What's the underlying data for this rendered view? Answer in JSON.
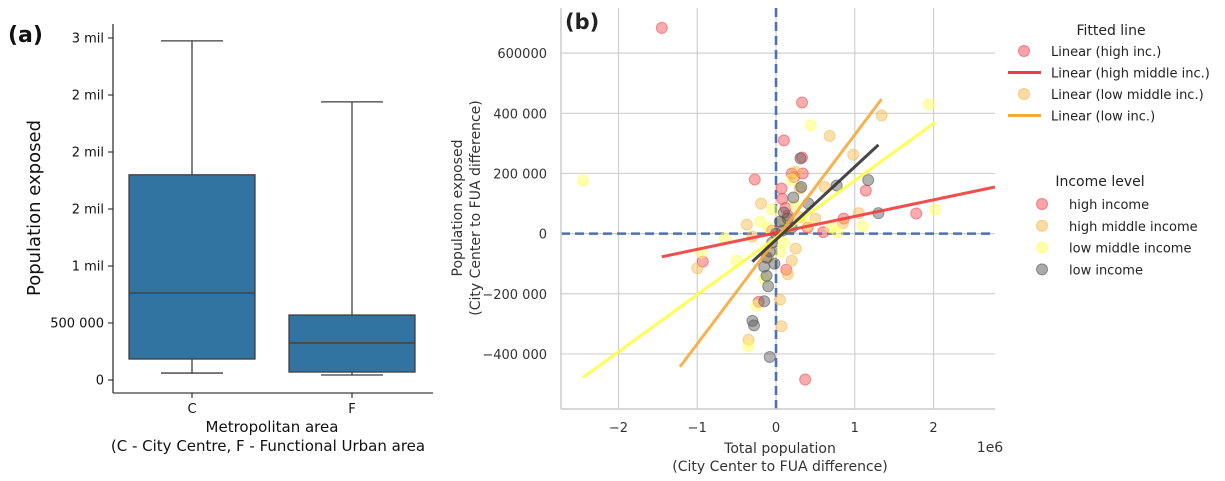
{
  "chart_data": [
    {
      "panel_label": "(a)",
      "type": "box",
      "title": "",
      "xlabel": "Metropolitan area",
      "xlabel_line2": "(C - City Centre, F - Functional Urban area",
      "ylabel": "Population exposed",
      "categories": [
        "C",
        "F"
      ],
      "ylim": [
        -100000,
        3220000
      ],
      "yticks": [
        0,
        500000,
        1000000,
        1500000,
        2000000,
        2500000,
        3000000
      ],
      "ytick_labels": [
        "0",
        "500 000",
        "1 mil",
        "2 mil",
        "2 mil",
        "2 mil",
        "3 mil"
      ],
      "box_color": "#3274a1",
      "boxes": [
        {
          "category": "C",
          "whisker_low": 61000,
          "q1": 184000,
          "median": 763000,
          "q3": 1800000,
          "whisker_high": 2975000
        },
        {
          "category": "F",
          "whisker_low": 44000,
          "q1": 70000,
          "median": 325000,
          "q3": 570000,
          "whisker_high": 2440000
        }
      ]
    },
    {
      "panel_label": "(b)",
      "type": "scatter",
      "title": "",
      "xlabel": "Total population",
      "xlabel_line2": "(City Center to FUA difference)",
      "ylabel": "Population exposed",
      "ylabel_line2": "(City Center to FUA difference)",
      "x_offset_label": "1e6",
      "xlim": [
        -2.73,
        2.78
      ],
      "ylim": [
        -583000,
        750000
      ],
      "xticks": [
        -2,
        -1,
        0,
        1,
        2
      ],
      "xtick_labels": [
        "−2",
        "−1",
        "0",
        "1",
        "2"
      ],
      "yticks": [
        -400000,
        -200000,
        0,
        200000,
        400000,
        600000
      ],
      "ytick_labels": [
        "−400 000",
        "−200 000",
        "0",
        "200 000",
        "400 000",
        "600000"
      ],
      "grid": true,
      "reference_lines": {
        "x": 0,
        "y": 0,
        "color": "#4c72b0",
        "style": "dashed"
      },
      "series": [
        {
          "name": "high income",
          "color": "#f0474f",
          "points": [
            [
              -1.45,
              684000
            ],
            [
              0.33,
              436000
            ],
            [
              0.1,
              310000
            ],
            [
              0.33,
              253000
            ],
            [
              0.34,
              200000
            ],
            [
              -0.27,
              180000
            ],
            [
              0.07,
              150000
            ],
            [
              0.23,
              188000
            ],
            [
              0.2,
              200000
            ],
            [
              1.14,
              143000
            ],
            [
              1.78,
              67000
            ],
            [
              0.86,
              50000
            ],
            [
              0.08,
              115000
            ],
            [
              0.12,
              85000
            ],
            [
              -0.93,
              -93000
            ],
            [
              0.6,
              5000
            ],
            [
              0.37,
              -485000
            ],
            [
              0.13,
              -120000
            ],
            [
              -0.22,
              -227000
            ],
            [
              0.4,
              20000
            ],
            [
              0.15,
              60000
            ],
            [
              -0.05,
              10000
            ]
          ]
        },
        {
          "name": "high middle income",
          "color": "#f7b84a",
          "points": [
            [
              0.68,
              325000
            ],
            [
              1.34,
              393000
            ],
            [
              0.25,
              205000
            ],
            [
              0.98,
              262000
            ],
            [
              0.62,
              155000
            ],
            [
              0.3,
              150000
            ],
            [
              -0.19,
              100000
            ],
            [
              0.85,
              35000
            ],
            [
              1.05,
              68000
            ],
            [
              -0.37,
              30000
            ],
            [
              0.07,
              -308000
            ],
            [
              -1.0,
              -115000
            ],
            [
              -0.35,
              -353000
            ],
            [
              0.2,
              -90000
            ],
            [
              0.15,
              -135000
            ],
            [
              0.3,
              55000
            ],
            [
              0.5,
              50000
            ],
            [
              -0.1,
              -80000
            ],
            [
              0.25,
              -50000
            ],
            [
              -0.3,
              -10000
            ],
            [
              0.1,
              40000
            ],
            [
              0.05,
              -220000
            ]
          ]
        },
        {
          "name": "low middle income",
          "color": "#ffff55",
          "points": [
            [
              -2.45,
              176000
            ],
            [
              1.94,
              430000
            ],
            [
              0.44,
              360000
            ],
            [
              2.02,
              80000
            ],
            [
              1.1,
              25000
            ],
            [
              0.78,
              5000
            ],
            [
              0.7,
              20000
            ],
            [
              -0.95,
              -63000
            ],
            [
              -0.5,
              -90000
            ],
            [
              -0.35,
              -375000
            ],
            [
              -0.25,
              -240000
            ],
            [
              -0.65,
              -15000
            ],
            [
              0.2,
              180000
            ],
            [
              -0.2,
              40000
            ],
            [
              -0.1,
              20000
            ],
            [
              0.05,
              -60000
            ],
            [
              -0.15,
              -150000
            ],
            [
              0.25,
              95000
            ],
            [
              0.4,
              30000
            ],
            [
              0.1,
              -30000
            ],
            [
              -0.05,
              80000
            ]
          ]
        },
        {
          "name": "low income",
          "color": "#555555",
          "points": [
            [
              0.31,
              250000
            ],
            [
              0.32,
              155000
            ],
            [
              1.17,
              178000
            ],
            [
              0.77,
              160000
            ],
            [
              1.3,
              68000
            ],
            [
              0.22,
              120000
            ],
            [
              0.41,
              100000
            ],
            [
              -0.08,
              -410000
            ],
            [
              -0.3,
              -290000
            ],
            [
              -0.28,
              -305000
            ],
            [
              -0.15,
              -225000
            ],
            [
              -0.1,
              -175000
            ],
            [
              -0.12,
              -140000
            ],
            [
              -0.15,
              -110000
            ],
            [
              -0.08,
              -60000
            ],
            [
              -0.05,
              -30000
            ],
            [
              0.05,
              40000
            ],
            [
              0.1,
              70000
            ],
            [
              0.15,
              50000
            ],
            [
              0.0,
              0
            ],
            [
              -0.12,
              -80000
            ],
            [
              0.08,
              10000
            ],
            [
              -0.02,
              -100000
            ],
            [
              0.2,
              20000
            ]
          ]
        }
      ],
      "fitted_lines": [
        {
          "name": "red fit",
          "color": "#f03c3c",
          "x": [
            -1.45,
            2.78
          ],
          "y": [
            -77000,
            155000
          ]
        },
        {
          "name": "orange fit",
          "color": "#f7a83c",
          "x": [
            -1.22,
            1.34
          ],
          "y": [
            -443000,
            447000
          ]
        },
        {
          "name": "yellow fit",
          "color": "#ffff40",
          "x": [
            -2.45,
            2.02
          ],
          "y": [
            -478000,
            370000
          ]
        },
        {
          "name": "black fit",
          "color": "#333333",
          "x": [
            -0.3,
            1.3
          ],
          "y": [
            -93000,
            295000
          ]
        }
      ],
      "legends": [
        {
          "title": "Fitted line",
          "placement": "upper-right-outside",
          "entries": [
            {
              "label": "Linear (high inc.)",
              "marker": "circle",
              "color": "#f0474f"
            },
            {
              "label": "Linear (high middle inc.)",
              "marker": "line",
              "color": "#f03c3c"
            },
            {
              "label": "Linear (low middle inc.)",
              "marker": "circle",
              "color": "#f7b84a"
            },
            {
              "label": "Linear (low inc.)",
              "marker": "line",
              "color": "#f7a83c"
            }
          ]
        },
        {
          "title": "Income level",
          "placement": "right-outside",
          "entries": [
            {
              "label": "high income",
              "marker": "circle",
              "color": "#f0474f"
            },
            {
              "label": "high middle income",
              "marker": "circle",
              "color": "#f7b84a"
            },
            {
              "label": "low middle income",
              "marker": "circle",
              "color": "#ffff55"
            },
            {
              "label": "low income",
              "marker": "circle",
              "color": "#555555"
            }
          ]
        }
      ]
    }
  ]
}
